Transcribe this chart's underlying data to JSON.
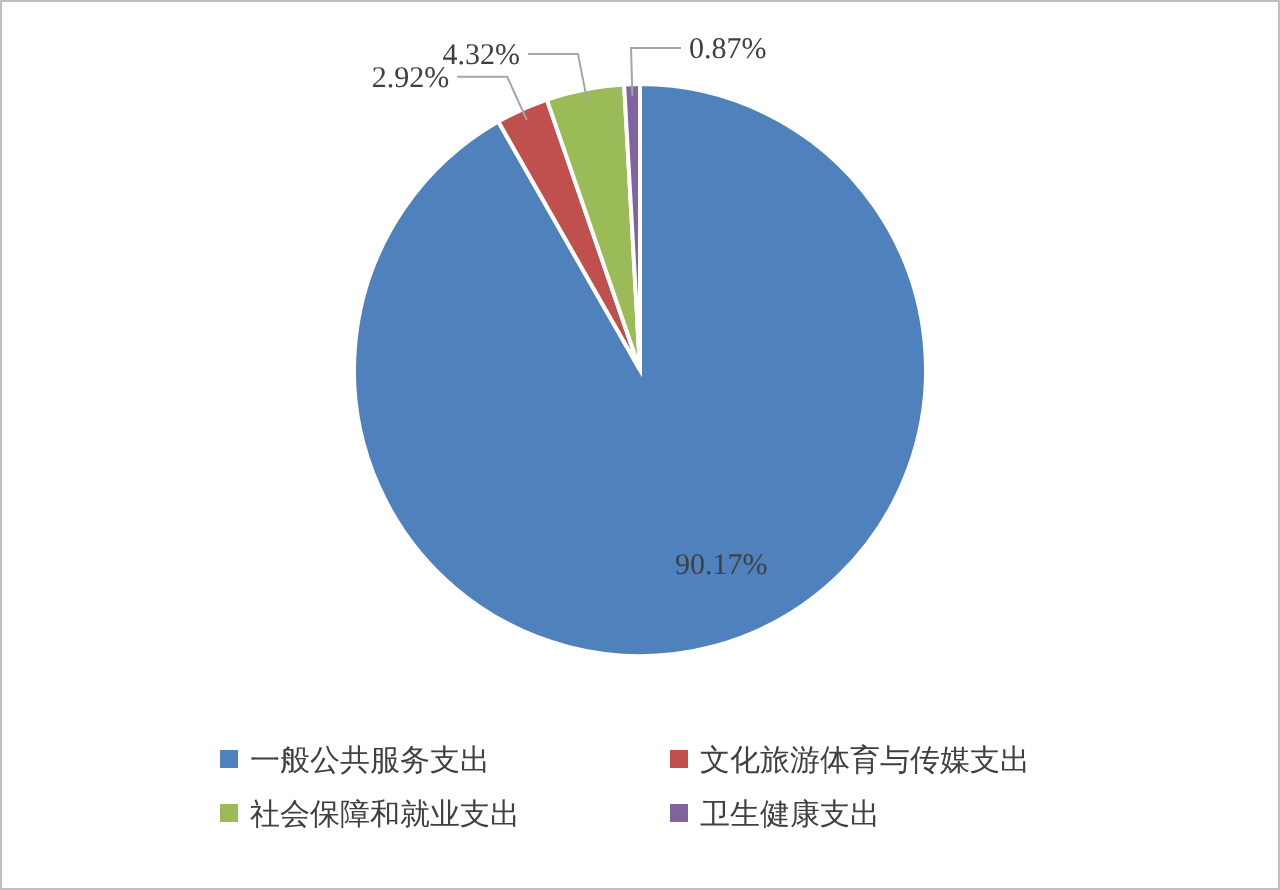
{
  "chart_data": {
    "type": "pie",
    "categories": [
      "一般公共服务支出",
      "文化旅游体育与传媒支出",
      "社会保障和就业支出",
      "卫生健康支出"
    ],
    "values": [
      90.17,
      2.92,
      4.32,
      0.87
    ],
    "colors": [
      "#4f81bd",
      "#c0504d",
      "#9bbb59",
      "#8064a2"
    ],
    "value_labels": [
      "90.17%",
      "2.92%",
      "4.32%",
      "0.87%"
    ],
    "legend": "bottom"
  }
}
